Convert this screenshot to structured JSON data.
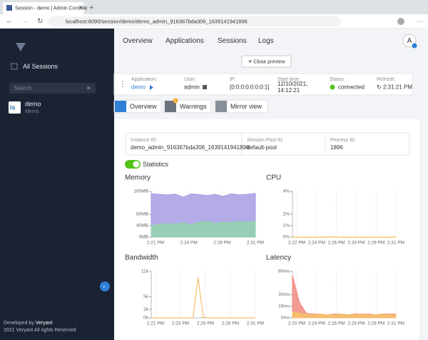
{
  "browser": {
    "tab_title": "Session - demo | Admin Console",
    "url": "localhost:8090/session/demo/demo_admin_916367bda306_1639141941896"
  },
  "sidebar": {
    "nav": "All Sessions",
    "search_placeholder": "Search",
    "session": {
      "name": "demo",
      "path": "/demo"
    },
    "footer": {
      "developed_by": "Developed by",
      "company": "Veryant",
      "copyright": "2021 Veryant All rights Reserved"
    }
  },
  "topnav": [
    "Overview",
    "Applications",
    "Sessions",
    "Logs"
  ],
  "avatar": "A",
  "close_preview": "Close preview",
  "info": [
    {
      "label": "Application:",
      "value": "demo"
    },
    {
      "label": "User:",
      "value": "admin"
    },
    {
      "label": "IP:",
      "value": "[0:0:0:0:0:0:0:1]"
    },
    {
      "label": "Start time:",
      "value": "12/10/2021,",
      "value2": "14:12:21"
    },
    {
      "label": "Status:",
      "value": "connected"
    },
    {
      "label": "Refresh:",
      "value": "2:31:21 PM"
    }
  ],
  "tabs": [
    {
      "label": "Overview"
    },
    {
      "label": "Warnings",
      "badge": "1"
    },
    {
      "label": "Mirror view"
    }
  ],
  "details": [
    {
      "label": "Instance ID:",
      "value": "demo_admin_916367bda306_1639141941896"
    },
    {
      "label": "Session Pool ID:",
      "value": "default-pool"
    },
    {
      "label": "Process ID:",
      "value": "1896"
    }
  ],
  "statistics_toggle": "Statistics",
  "chart_data": [
    {
      "type": "area",
      "title": "Memory",
      "ylim": [
        0,
        160
      ],
      "yticks": [
        {
          "value": 160,
          "label": "160MB"
        },
        {
          "value": 80,
          "label": "80MB"
        },
        {
          "value": 40,
          "label": "40MB"
        },
        {
          "value": 0,
          "label": "0MB"
        }
      ],
      "x_labels": [
        "2:21 PM",
        "2:24 PM",
        "2:28 PM",
        "2:31 PM"
      ],
      "series": [
        {
          "color": "#a79ee3",
          "values": [
            152,
            150,
            148,
            151,
            140,
            152,
            149,
            146,
            150,
            143,
            152,
            148,
            150,
            153
          ]
        },
        {
          "color": "#93d3ab",
          "values": [
            40,
            45,
            48,
            46,
            50,
            44,
            52,
            55,
            48,
            53,
            50,
            55,
            52,
            56
          ]
        }
      ]
    },
    {
      "type": "line",
      "title": "CPU",
      "ylim": [
        0,
        4
      ],
      "yticks": [
        {
          "value": 4,
          "label": "4%"
        },
        {
          "value": 2,
          "label": "2%"
        },
        {
          "value": 1,
          "label": "1%"
        },
        {
          "value": 0,
          "label": "0%"
        }
      ],
      "x_labels": [
        "2:22 PM",
        "2:24 PM",
        "2:26 PM",
        "2:28 PM",
        "2:29 PM",
        "2:31 PM"
      ],
      "series": [
        {
          "color": "#f2b94f",
          "values": [
            0,
            0,
            0,
            0,
            0.02,
            0,
            0,
            0,
            0,
            0,
            0,
            0
          ]
        }
      ]
    },
    {
      "type": "line",
      "title": "Bandwidth",
      "ylim": [
        0,
        11000
      ],
      "yticks": [
        {
          "value": 11000,
          "label": "11k"
        },
        {
          "value": 5000,
          "label": "5k"
        },
        {
          "value": 2000,
          "label": "2k"
        },
        {
          "value": 0,
          "label": "0k"
        }
      ],
      "x_labels": [
        "2:21 PM",
        "2:23 PM",
        "2:26 PM",
        "2:28 PM",
        "2:31 PM"
      ],
      "series": [
        {
          "color": "#f5c26b",
          "values": [
            0,
            0,
            0,
            0,
            0,
            0,
            0,
            0,
            0,
            9500,
            200,
            0,
            0,
            0,
            0,
            0,
            0,
            0,
            0,
            0,
            0
          ]
        }
      ]
    },
    {
      "type": "area",
      "title": "Latency",
      "ylim": [
        0,
        60
      ],
      "yticks": [
        {
          "value": 60,
          "label": "60ms"
        },
        {
          "value": 30,
          "label": "30ms"
        },
        {
          "value": 15,
          "label": "15ms"
        },
        {
          "value": 0,
          "label": "0ms"
        }
      ],
      "x_labels": [
        "2:20 PM",
        "2:24 PM",
        "2:26 PM",
        "2:28 PM",
        "2:29 PM",
        "2:31 PM"
      ],
      "series": [
        {
          "color": "#f08a80",
          "values": [
            55,
            20,
            6,
            5,
            5,
            4,
            5,
            5,
            4,
            5,
            5,
            5,
            4,
            5,
            5,
            5
          ]
        },
        {
          "color": "#f5c26b",
          "values": [
            8,
            6,
            5,
            4,
            5,
            4,
            4,
            5,
            4,
            4,
            5,
            4,
            4,
            5,
            4,
            4
          ]
        }
      ]
    }
  ]
}
